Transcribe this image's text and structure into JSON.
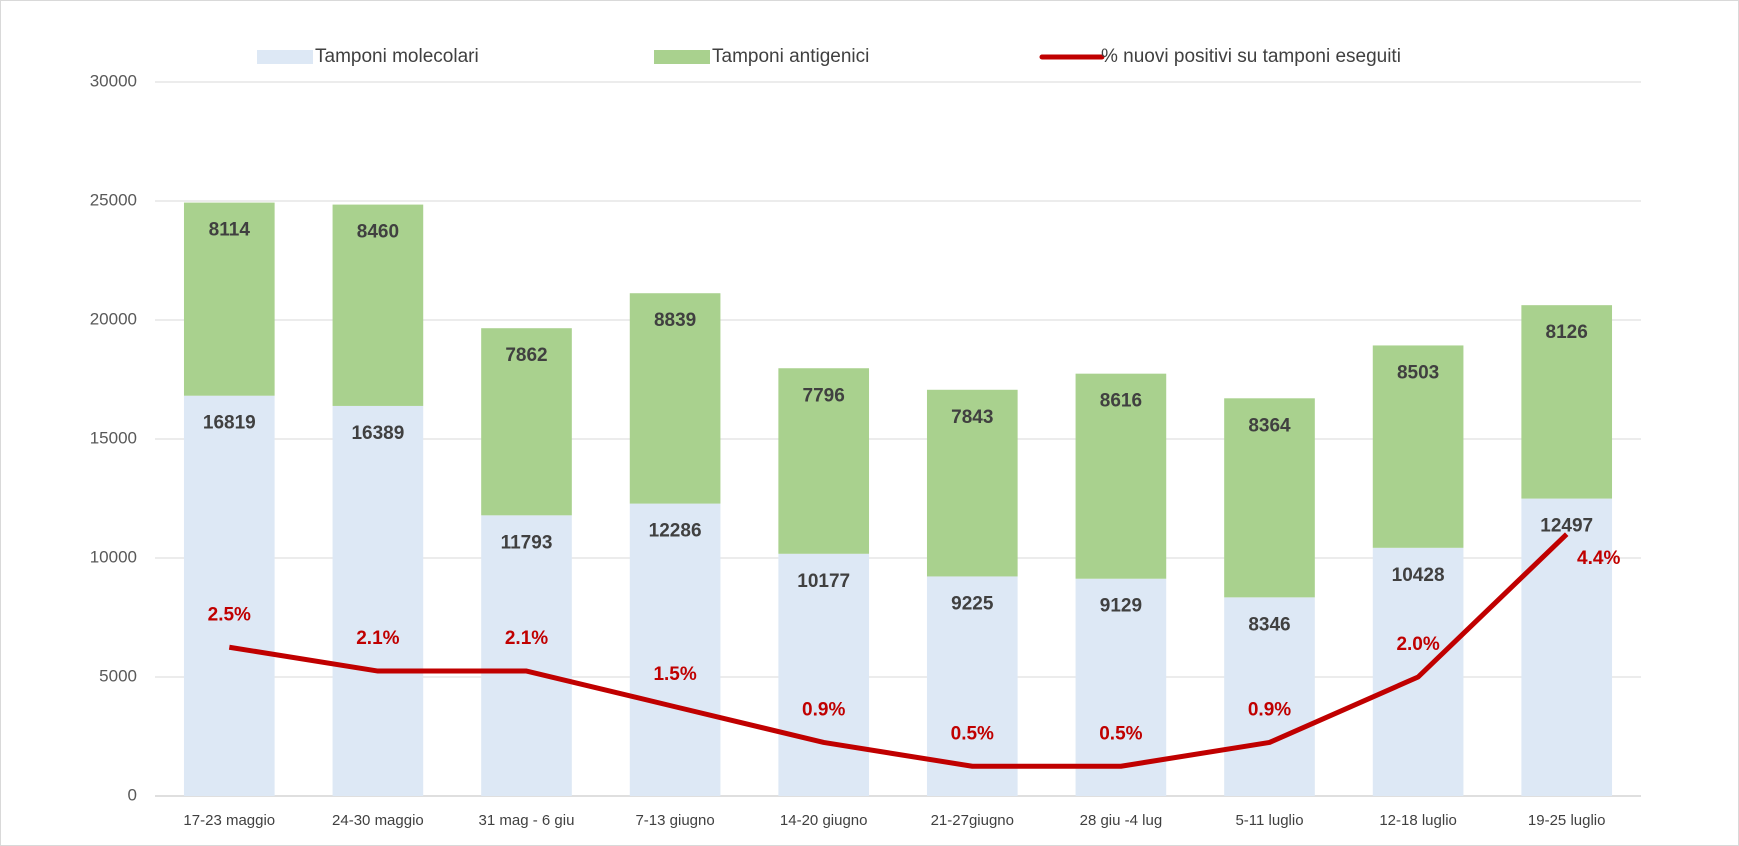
{
  "chart_data": {
    "type": "bar",
    "stacked": true,
    "categories": [
      "17-23 maggio",
      "24-30 maggio",
      "31 mag - 6 giu",
      "7-13 giugno",
      "14-20 giugno",
      "21-27giugno",
      "28 giu -4 lug",
      "5-11 luglio",
      "12-18 luglio",
      "19-25 luglio"
    ],
    "series": [
      {
        "name": "Tamponi molecolari",
        "type": "bar",
        "color": "#dde8f5",
        "values": [
          16819,
          16389,
          11793,
          12286,
          10177,
          9225,
          9129,
          8346,
          10428,
          12497
        ]
      },
      {
        "name": "Tamponi antigenici",
        "type": "bar",
        "color": "#a9d18e",
        "values": [
          8114,
          8460,
          7862,
          8839,
          7796,
          7843,
          8616,
          8364,
          8503,
          8126
        ]
      },
      {
        "name": "% nuovi positivi su tamponi eseguiti",
        "type": "line",
        "axis": "y2",
        "color": "#c00000",
        "values": [
          2.5,
          2.1,
          2.1,
          1.5,
          0.9,
          0.5,
          0.5,
          0.9,
          2.0,
          4.4
        ],
        "value_labels": [
          "2.5%",
          "2.1%",
          "2.1%",
          "1.5%",
          "0.9%",
          "0.5%",
          "0.5%",
          "0.9%",
          "2.0%",
          "4.4%"
        ]
      }
    ],
    "ylim": [
      0,
      30000
    ],
    "yticks": [
      0,
      5000,
      10000,
      15000,
      20000,
      25000,
      30000
    ],
    "y2lim": [
      0,
      12
    ],
    "grid": true,
    "legend": "top"
  }
}
